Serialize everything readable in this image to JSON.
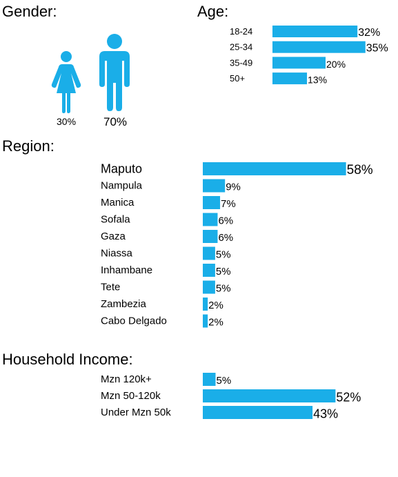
{
  "colors": {
    "accent": "#1aaee8",
    "text": "#000000",
    "background": "#ffffff"
  },
  "gender": {
    "title": "Gender:",
    "icons": [
      "female-icon",
      "male-icon"
    ],
    "female_label": "30%",
    "male_label": "70%"
  },
  "age": {
    "title": "Age:"
  },
  "region": {
    "title": "Region:"
  },
  "income": {
    "title": "Household Income:"
  },
  "chart_data": [
    {
      "type": "pictogram",
      "title": "Gender:",
      "categories": [
        "female",
        "male"
      ],
      "values": [
        30,
        70
      ],
      "data_labels": [
        "30%",
        "70%"
      ]
    },
    {
      "type": "bar",
      "orientation": "horizontal",
      "title": "Age:",
      "categories": [
        "18-24",
        "25-34",
        "35-49",
        "50+"
      ],
      "values": [
        32,
        35,
        20,
        13
      ],
      "data_labels": [
        "32%",
        "35%",
        "20%",
        "13%"
      ],
      "color": "#1aaee8"
    },
    {
      "type": "bar",
      "orientation": "horizontal",
      "title": "Region:",
      "categories": [
        "Maputo",
        "Nampula",
        "Manica",
        "Sofala",
        "Gaza",
        "Niassa",
        "Inhambane",
        "Tete",
        "Zambezia",
        "Cabo Delgado"
      ],
      "values": [
        58,
        9,
        7,
        6,
        6,
        5,
        5,
        5,
        2,
        2
      ],
      "data_labels": [
        "58%",
        "9%",
        "7%",
        "6%",
        "6%",
        "5%",
        "5%",
        "5%",
        "2%",
        "2%"
      ],
      "color": "#1aaee8"
    },
    {
      "type": "bar",
      "orientation": "horizontal",
      "title": "Household Income:",
      "categories": [
        "Mzn 120k+",
        "Mzn 50-120k",
        "Under Mzn 50k"
      ],
      "values": [
        5,
        52,
        43
      ],
      "data_labels": [
        "5%",
        "52%",
        "43%"
      ],
      "color": "#1aaee8"
    }
  ]
}
